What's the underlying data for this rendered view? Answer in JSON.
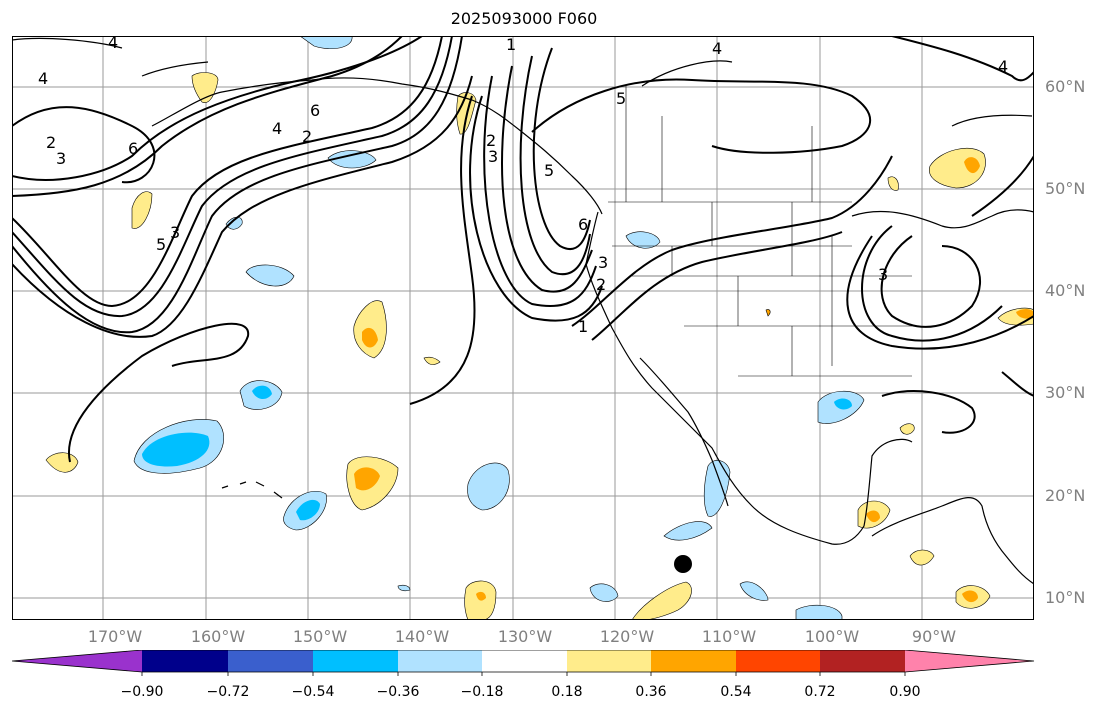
{
  "title": "2025093000 F060",
  "lat_labels": [
    {
      "value": 60,
      "text": "60°N"
    },
    {
      "value": 50,
      "text": "50°N"
    },
    {
      "value": 40,
      "text": "40°N"
    },
    {
      "value": 30,
      "text": "30°N"
    },
    {
      "value": 20,
      "text": "20°N"
    },
    {
      "value": 10,
      "text": "10°N"
    }
  ],
  "lon_labels": [
    {
      "value": -170,
      "text": "170°W"
    },
    {
      "value": -160,
      "text": "160°W"
    },
    {
      "value": -150,
      "text": "150°W"
    },
    {
      "value": -140,
      "text": "140°W"
    },
    {
      "value": -130,
      "text": "130°W"
    },
    {
      "value": -120,
      "text": "120°W"
    },
    {
      "value": -110,
      "text": "110°W"
    },
    {
      "value": -100,
      "text": "100°W"
    },
    {
      "value": -90,
      "text": "90°W"
    }
  ],
  "colorbar": {
    "colors": [
      "#9a32cd",
      "#00008b",
      "#3a5fcd",
      "#00bfff",
      "#b0e2ff",
      "#ffffff",
      "#ffec8b",
      "#ffa500",
      "#ff4500",
      "#b22222",
      "#ff82ab"
    ],
    "boundaries": [
      "−0.90",
      "−0.72",
      "−0.54",
      "−0.36",
      "−0.18",
      "0.18",
      "0.36",
      "0.54",
      "0.72",
      "0.90"
    ]
  },
  "contour_labels": [
    "4",
    "4",
    "4",
    "2",
    "3",
    "6",
    "5",
    "6",
    "4",
    "2",
    "2",
    "3",
    "5",
    "3",
    "5",
    "6",
    "4",
    "3",
    "2",
    "1",
    "1",
    "3"
  ],
  "marker": {
    "name": "storm-center",
    "lon": -114.5,
    "lat": 13.2
  }
}
